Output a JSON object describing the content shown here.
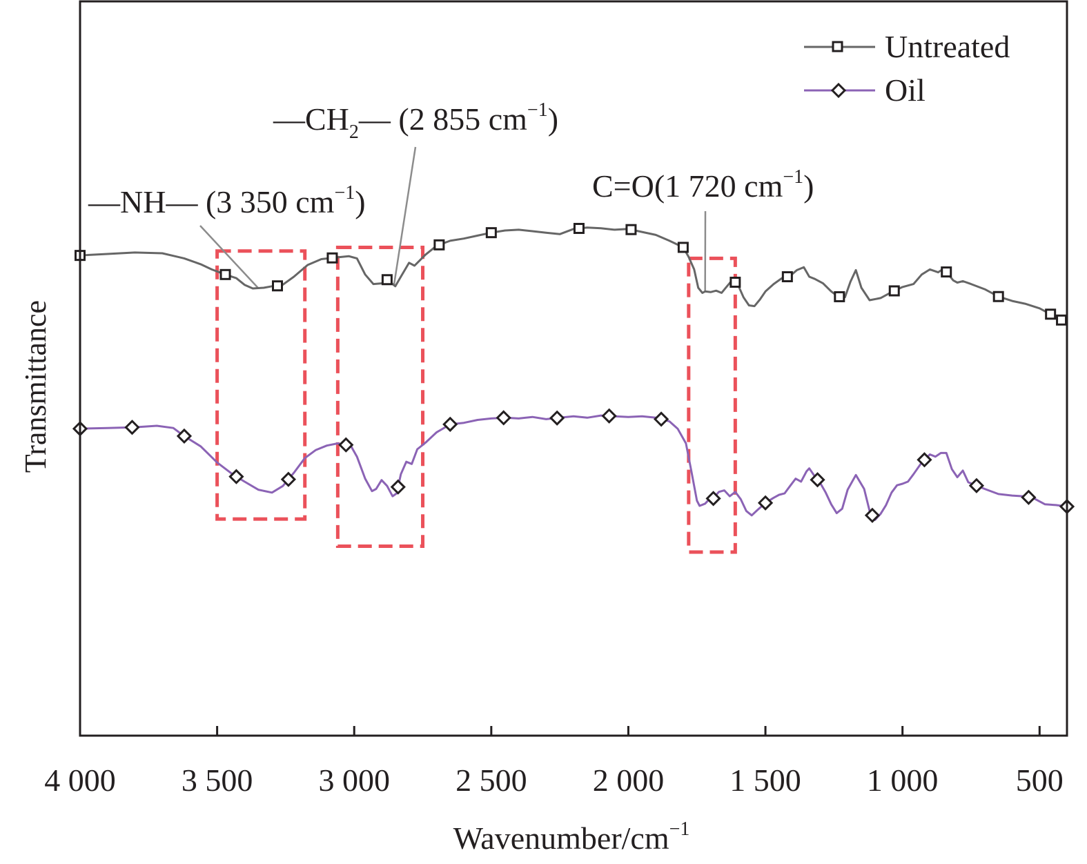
{
  "chart_data": {
    "type": "line",
    "title": "",
    "xlabel": "Wavenumber/cm",
    "xlabel_superscript": "−1",
    "ylabel": "Transmittance",
    "xlim": [
      4000,
      400
    ],
    "ylim": [
      0,
      100
    ],
    "x_reversed": true,
    "grid": false,
    "x_ticks": [
      4000,
      3500,
      3000,
      2500,
      2000,
      1500,
      1000,
      500
    ],
    "x_tick_labels": [
      "4 000",
      "3 500",
      "3 000",
      "2 500",
      "2 000",
      "1 500",
      "1 000",
      "500"
    ],
    "legend": {
      "placement": "top-right",
      "entries": [
        {
          "label": "Untreated",
          "marker": "square",
          "color": "#666666"
        },
        {
          "label": "Oil",
          "marker": "diamond",
          "color": "#8b63b5"
        }
      ]
    },
    "series": [
      {
        "name": "Untreated",
        "color": "#666666",
        "marker": "square",
        "x": [
          4000,
          3900,
          3800,
          3700,
          3620,
          3560,
          3520,
          3470,
          3430,
          3400,
          3370,
          3330,
          3300,
          3265,
          3220,
          3170,
          3120,
          3070,
          3020,
          2990,
          2960,
          2930,
          2900,
          2880,
          2860,
          2850,
          2830,
          2800,
          2780,
          2740,
          2700,
          2650,
          2600,
          2550,
          2500,
          2450,
          2400,
          2350,
          2300,
          2250,
          2200,
          2150,
          2100,
          2050,
          2000,
          1950,
          1900,
          1850,
          1800,
          1780,
          1760,
          1745,
          1730,
          1720,
          1700,
          1680,
          1660,
          1640,
          1620,
          1600,
          1580,
          1560,
          1540,
          1520,
          1500,
          1470,
          1440,
          1410,
          1385,
          1360,
          1340,
          1320,
          1290,
          1260,
          1235,
          1210,
          1190,
          1170,
          1150,
          1120,
          1080,
          1040,
          1000,
          960,
          930,
          900,
          870,
          850,
          830,
          815,
          800,
          780,
          750,
          700,
          650,
          600,
          550,
          500,
          460,
          420,
          400
        ],
        "y": [
          65.4,
          65.6,
          65.8,
          65.7,
          65.0,
          64.2,
          63.5,
          62.8,
          62.3,
          61.4,
          60.9,
          61.0,
          61.2,
          61.3,
          62.5,
          64.1,
          64.9,
          65.1,
          65.3,
          65.0,
          62.8,
          61.5,
          61.6,
          62.1,
          61.5,
          61.2,
          62.5,
          64.4,
          64.0,
          65.5,
          66.7,
          67.4,
          67.7,
          68.1,
          68.5,
          68.8,
          68.9,
          68.7,
          68.5,
          68.3,
          69.0,
          69.2,
          69.1,
          68.9,
          69.0,
          68.6,
          68.2,
          67.4,
          66.5,
          65.2,
          63.5,
          61.0,
          60.3,
          60.5,
          60.4,
          60.6,
          60.3,
          61.2,
          62.1,
          61.4,
          59.7,
          58.6,
          58.5,
          59.4,
          60.5,
          61.5,
          62.3,
          62.6,
          63.4,
          63.8,
          62.5,
          62.2,
          61.6,
          60.5,
          59.8,
          59.7,
          61.8,
          63.4,
          61.0,
          59.3,
          59.6,
          60.4,
          61.1,
          61.5,
          62.8,
          63.5,
          63.1,
          63.6,
          62.7,
          62.0,
          61.7,
          61.9,
          61.5,
          60.8,
          59.8,
          59.2,
          58.8,
          58.2,
          57.4,
          56.6,
          56.4
        ]
      },
      {
        "name": "Oil",
        "color": "#8b63b5",
        "marker": "diamond",
        "x": [
          4000,
          3900,
          3800,
          3720,
          3660,
          3620,
          3560,
          3500,
          3440,
          3400,
          3350,
          3300,
          3260,
          3220,
          3180,
          3140,
          3100,
          3060,
          3030,
          3010,
          2990,
          2960,
          2935,
          2920,
          2900,
          2880,
          2860,
          2845,
          2830,
          2810,
          2790,
          2770,
          2740,
          2700,
          2650,
          2600,
          2550,
          2500,
          2450,
          2400,
          2350,
          2300,
          2250,
          2200,
          2150,
          2100,
          2050,
          2000,
          1950,
          1900,
          1850,
          1820,
          1790,
          1770,
          1750,
          1740,
          1720,
          1700,
          1690,
          1670,
          1650,
          1630,
          1610,
          1590,
          1570,
          1550,
          1530,
          1500,
          1470,
          1450,
          1430,
          1410,
          1390,
          1370,
          1350,
          1340,
          1320,
          1300,
          1280,
          1260,
          1240,
          1220,
          1200,
          1170,
          1140,
          1120,
          1100,
          1080,
          1060,
          1040,
          1020,
          1000,
          980,
          960,
          930,
          900,
          880,
          860,
          840,
          820,
          800,
          780,
          760,
          740,
          700,
          650,
          600,
          560,
          520,
          480,
          440,
          400
        ],
        "y": [
          41.8,
          41.9,
          42.0,
          42.2,
          41.9,
          40.8,
          39.4,
          37.2,
          35.5,
          34.6,
          33.5,
          33.1,
          34.0,
          35.8,
          37.8,
          38.9,
          39.5,
          39.8,
          39.6,
          39.3,
          38.0,
          35.0,
          33.3,
          33.6,
          34.8,
          34.0,
          32.6,
          33.0,
          35.6,
          37.3,
          37.0,
          39.0,
          39.9,
          41.3,
          42.4,
          42.6,
          43.0,
          43.2,
          43.3,
          43.2,
          43.4,
          43.1,
          43.3,
          43.5,
          43.3,
          43.6,
          43.5,
          43.4,
          43.5,
          43.3,
          42.8,
          41.8,
          39.8,
          36.0,
          32.0,
          31.3,
          31.6,
          32.4,
          32.3,
          33.2,
          33.4,
          32.6,
          33.2,
          32.2,
          30.6,
          30.0,
          30.7,
          31.7,
          32.4,
          32.8,
          33.0,
          34.0,
          35.0,
          34.6,
          36.0,
          36.4,
          35.3,
          34.4,
          33.1,
          31.5,
          30.3,
          30.9,
          33.5,
          35.5,
          33.6,
          30.6,
          29.4,
          30.2,
          31.4,
          33.1,
          34.1,
          34.3,
          34.6,
          35.6,
          37.2,
          38.3,
          38.0,
          38.5,
          38.5,
          36.3,
          35.2,
          36.1,
          34.5,
          34.2,
          33.6,
          32.9,
          32.7,
          32.6,
          32.3,
          31.5,
          31.4,
          31.2
        ]
      }
    ],
    "marker_positions": {
      "Untreated": [
        4000,
        3470,
        3280,
        3080,
        2880,
        2690,
        2500,
        2180,
        1990,
        1800,
        1610,
        1420,
        1230,
        1030,
        840,
        650,
        460,
        420
      ],
      "Oil": [
        4000,
        3810,
        3620,
        3430,
        3240,
        3030,
        2840,
        2650,
        2455,
        2260,
        2070,
        1880,
        1690,
        1500,
        1310,
        1110,
        920,
        730,
        540,
        400
      ]
    },
    "annotations": [
      {
        "label": "—NH— (3 350 cm",
        "sup": "−1",
        "close": ")",
        "target_x": 3350,
        "series": "Untreated"
      },
      {
        "label": "—CH",
        "sub": "2",
        "label_rest": "— (2 855 cm",
        "sup": "−1",
        "close": ")",
        "target_x": 2855,
        "series": "Untreated"
      },
      {
        "label": "C=O(1 720 cm",
        "sup": "−1",
        "close": ")",
        "target_x": 1720,
        "series": "Untreated"
      }
    ],
    "highlight_boxes": [
      {
        "x_range": [
          3500,
          3180
        ],
        "y_range": [
          29.5,
          66.0
        ],
        "color": "#e8333d"
      },
      {
        "x_range": [
          3060,
          2750
        ],
        "y_range": [
          25.8,
          66.5
        ],
        "color": "#e8333d"
      },
      {
        "x_range": [
          1780,
          1610
        ],
        "y_range": [
          25.0,
          65.0
        ],
        "color": "#e8333d"
      }
    ]
  }
}
